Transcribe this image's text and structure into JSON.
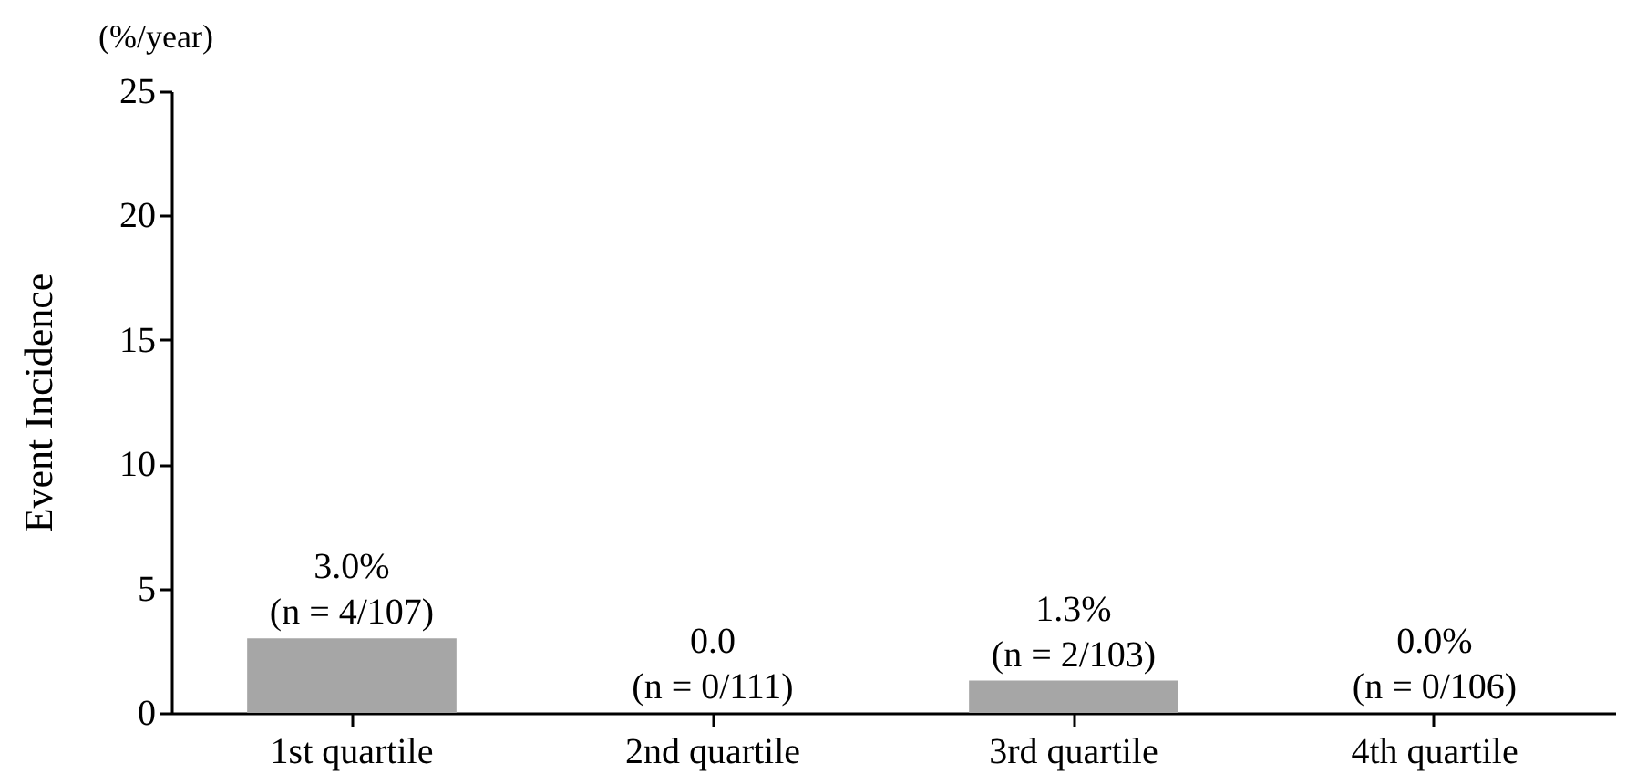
{
  "chart_data": {
    "type": "bar",
    "categories": [
      "1st quartile",
      "2nd quartile",
      "3rd quartile",
      "4th quartile"
    ],
    "values": [
      3.0,
      0.0,
      1.3,
      0.0
    ],
    "value_labels": [
      "3.0%\n(n = 4/107)",
      "0.0\n(n = 0/111)",
      "1.3%\n(n = 2/103)",
      "0.0%\n(n = 0/106)"
    ],
    "color": "#a6a6a6",
    "ylabel": "Event Incidence",
    "annotations": [
      "(%/year)"
    ],
    "ylim": [
      0,
      25
    ],
    "yticks": [
      0,
      5,
      10,
      15,
      20,
      25
    ],
    "grid": false
  }
}
